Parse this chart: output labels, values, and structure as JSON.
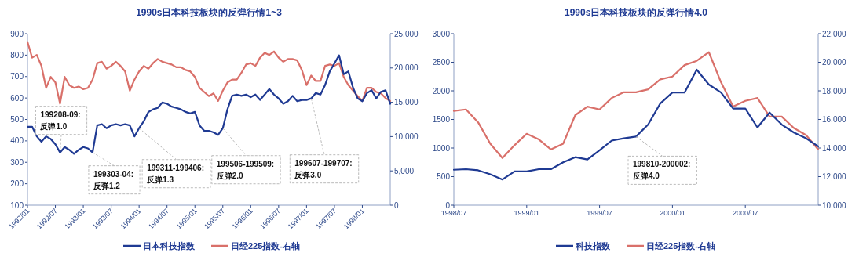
{
  "chart_data": [
    {
      "type": "line",
      "title": "1990s日本科技板块的反弹行情1~3",
      "legend": "bottom",
      "grid": false,
      "marker": "none",
      "line_style": "solid",
      "x": [
        "1992-01",
        "1992-02",
        "1992-03",
        "1992-04",
        "1992-05",
        "1992-06",
        "1992-07",
        "1992-08",
        "1992-09",
        "1992-10",
        "1992-11",
        "1992-12",
        "1993-01",
        "1993-02",
        "1993-03",
        "1993-04",
        "1993-05",
        "1993-06",
        "1993-07",
        "1993-08",
        "1993-09",
        "1993-10",
        "1993-11",
        "1993-12",
        "1994-01",
        "1994-02",
        "1994-03",
        "1994-04",
        "1994-05",
        "1994-06",
        "1994-07",
        "1994-08",
        "1994-09",
        "1994-10",
        "1994-11",
        "1994-12",
        "1995-01",
        "1995-02",
        "1995-03",
        "1995-04",
        "1995-05",
        "1995-06",
        "1995-07",
        "1995-08",
        "1995-09",
        "1995-10",
        "1995-11",
        "1995-12",
        "1996-01",
        "1996-02",
        "1996-03",
        "1996-04",
        "1996-05",
        "1996-06",
        "1996-07",
        "1996-08",
        "1996-09",
        "1996-10",
        "1996-11",
        "1996-12",
        "1997-01",
        "1997-02",
        "1997-03",
        "1997-04",
        "1997-05",
        "1997-06",
        "1997-07",
        "1997-08",
        "1997-09",
        "1997-10",
        "1997-11",
        "1997-12",
        "1998-01",
        "1998-02",
        "1998-03",
        "1998-04",
        "1998-05",
        "1998-06",
        "1998-07"
      ],
      "series": [
        {
          "name": "日本科技指数",
          "color": "#1f3a93",
          "values": [
            466,
            466,
            421,
            396,
            421,
            409,
            384,
            346,
            371,
            358,
            340,
            358,
            371,
            365,
            346,
            472,
            478,
            459,
            472,
            478,
            472,
            478,
            472,
            421,
            459,
            491,
            535,
            547,
            554,
            579,
            573,
            560,
            554,
            547,
            535,
            528,
            535,
            472,
            447,
            447,
            440,
            428,
            459,
            547,
            610,
            616,
            610,
            616,
            604,
            616,
            591,
            616,
            642,
            616,
            598,
            573,
            585,
            610,
            585,
            591,
            591,
            598,
            623,
            616,
            661,
            724,
            761,
            799,
            711,
            724,
            648,
            598,
            585,
            623,
            636,
            598,
            629,
            636,
            573
          ]
        },
        {
          "name": "日经225指数-右轴",
          "color": "#d9706a",
          "axis": "y2",
          "values": [
            23800,
            21500,
            21900,
            20300,
            17100,
            18700,
            17900,
            14800,
            18700,
            17500,
            17100,
            17300,
            16900,
            17100,
            18300,
            20700,
            20900,
            19900,
            20300,
            20900,
            20300,
            19500,
            16700,
            18300,
            19500,
            20300,
            19900,
            20700,
            21300,
            20900,
            20700,
            20500,
            20100,
            20100,
            19700,
            19500,
            18700,
            17100,
            16500,
            15900,
            16300,
            15200,
            16700,
            17900,
            18300,
            18300,
            19300,
            20500,
            20700,
            20300,
            21500,
            22200,
            21900,
            22400,
            21500,
            20900,
            21300,
            21300,
            21100,
            19700,
            17500,
            18900,
            18100,
            18100,
            20300,
            20500,
            20300,
            20700,
            18700,
            17500,
            16700,
            15900,
            15200,
            17100,
            17100,
            16500,
            16300,
            15600,
            15200
          ]
        }
      ],
      "xlim": [
        "1992-01",
        "1998-07"
      ],
      "xticks": [
        {
          "value": "1992-01",
          "label": "1992/01"
        },
        {
          "value": "1992-07",
          "label": "1992/07"
        },
        {
          "value": "1993-01",
          "label": "1993/01"
        },
        {
          "value": "1993-07",
          "label": "1993/07"
        },
        {
          "value": "1994-01",
          "label": "1994/01"
        },
        {
          "value": "1994-07",
          "label": "1994/07"
        },
        {
          "value": "1995-01",
          "label": "1995/01"
        },
        {
          "value": "1995-07",
          "label": "1995/07"
        },
        {
          "value": "1996-01",
          "label": "1996/01"
        },
        {
          "value": "1996-07",
          "label": "1996/07"
        },
        {
          "value": "1997-01",
          "label": "1997/01"
        },
        {
          "value": "1997-07",
          "label": "1997/07"
        },
        {
          "value": "1998-01",
          "label": "1998/01"
        }
      ],
      "ylim": [
        100,
        900
      ],
      "yticks": [
        100,
        200,
        300,
        400,
        500,
        600,
        700,
        800,
        900
      ],
      "y2lim": [
        0,
        25000
      ],
      "y2ticks": [
        0,
        {
          "value": 5000,
          "label": "5,000"
        },
        {
          "value": 10000,
          "label": "10,000"
        },
        {
          "value": 15000,
          "label": "15,000"
        },
        {
          "value": 20000,
          "label": "20,000"
        },
        {
          "value": 25000,
          "label": "25,000"
        }
      ],
      "annotations": [
        {
          "text": "199208-09:\n反弹1.0",
          "x": "1992-08",
          "y": 346
        },
        {
          "text": "199303-04:\n反弹1.2",
          "x": "1993-03",
          "y": 346
        },
        {
          "text": "199311-199406:\n反弹1.3",
          "x": "1994-01",
          "y": 459
        },
        {
          "text": "199506-199509:\n反弹2.0",
          "x": "1995-07",
          "y": 459
        },
        {
          "text": "199607-199707:\n反弹3.0",
          "x": "1997-02",
          "y": 598
        }
      ]
    },
    {
      "type": "line",
      "title": "1990s日本科技板块的反弹行情4.0",
      "legend": "bottom",
      "grid": false,
      "marker": "none",
      "line_style": "solid",
      "x": [
        "1998-07",
        "1998-08",
        "1998-09",
        "1998-10",
        "1998-11",
        "1998-12",
        "1999-01",
        "1999-02",
        "1999-03",
        "1999-04",
        "1999-05",
        "1999-06",
        "1999-07",
        "1999-08",
        "1999-09",
        "1999-10",
        "1999-11",
        "1999-12",
        "2000-01",
        "2000-02",
        "2000-03",
        "2000-04",
        "2000-05",
        "2000-06",
        "2000-07",
        "2000-08",
        "2000-09",
        "2000-10",
        "2000-11",
        "2000-12",
        "2001-01"
      ],
      "series": [
        {
          "name": "科技指数",
          "color": "#1f3a93",
          "values": [
            620,
            630,
            610,
            540,
            450,
            590,
            590,
            630,
            630,
            750,
            840,
            800,
            960,
            1130,
            1170,
            1200,
            1410,
            1780,
            1970,
            1970,
            2370,
            2110,
            1970,
            1690,
            1690,
            1360,
            1620,
            1410,
            1270,
            1170,
            1030
          ]
        },
        {
          "name": "日经225指数-右轴",
          "color": "#d9706a",
          "axis": "y2",
          "values": [
            16600,
            16700,
            15800,
            14300,
            13300,
            14200,
            15000,
            14600,
            13900,
            14300,
            16300,
            16900,
            16700,
            17500,
            17900,
            17900,
            18100,
            18800,
            19000,
            19800,
            20100,
            20700,
            18600,
            16900,
            17300,
            17500,
            16200,
            16200,
            15400,
            14900,
            13900
          ]
        }
      ],
      "xlim": [
        "1998-07",
        "2001-01"
      ],
      "xticks": [
        {
          "value": "1998-07",
          "label": "1998/07"
        },
        {
          "value": "1999-01",
          "label": "1999/01"
        },
        {
          "value": "1999-07",
          "label": "1999/07"
        },
        {
          "value": "2000-01",
          "label": "2000/01"
        },
        {
          "value": "2000-07",
          "label": "2000/07"
        }
      ],
      "ylim": [
        0,
        3000
      ],
      "yticks": [
        0,
        500,
        1000,
        1500,
        2000,
        2500,
        3000
      ],
      "y2lim": [
        10000,
        22000
      ],
      "y2ticks": [
        {
          "value": 10000,
          "label": "10,000"
        },
        {
          "value": 12000,
          "label": "12,000"
        },
        {
          "value": 14000,
          "label": "14,000"
        },
        {
          "value": 16000,
          "label": "16,000"
        },
        {
          "value": 18000,
          "label": "18,000"
        },
        {
          "value": 20000,
          "label": "20,000"
        },
        {
          "value": 22000,
          "label": "22,000"
        }
      ],
      "annotations": [
        {
          "text": "199810-200002:\n反弹4.0",
          "x": "1999-10",
          "y": 1200
        }
      ]
    }
  ]
}
